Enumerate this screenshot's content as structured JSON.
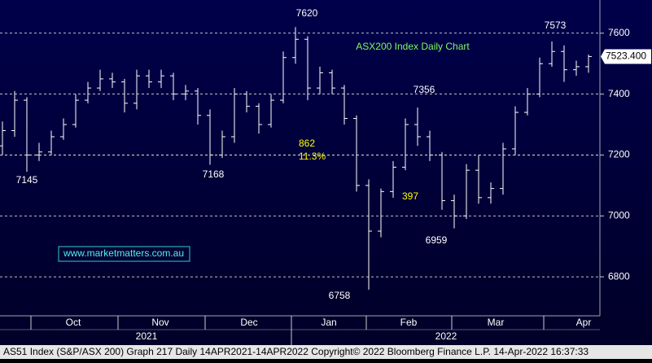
{
  "chart_data": {
    "type": "ohlc",
    "title": "ASX200 Index Daily Chart",
    "color": "#ffffff",
    "open": [
      7230,
      7280,
      7380,
      7200,
      7210,
      7260,
      7300,
      7380,
      7420,
      7450,
      7440,
      7370,
      7460,
      7440,
      7460,
      7400,
      7410,
      7330,
      7200,
      7260,
      7400,
      7360,
      7300,
      7380,
      7520,
      7580,
      7420,
      7470,
      7420,
      7320,
      7100,
      6950,
      7080,
      7160,
      7300,
      7260,
      7200,
      7050,
      7000,
      7150,
      7060,
      7090,
      7220,
      7340,
      7400,
      7500,
      7540,
      7480,
      7490
    ],
    "high": [
      7310,
      7410,
      7390,
      7240,
      7280,
      7320,
      7400,
      7440,
      7480,
      7470,
      7450,
      7480,
      7480,
      7480,
      7470,
      7430,
      7420,
      7350,
      7280,
      7420,
      7410,
      7370,
      7400,
      7540,
      7620,
      7590,
      7490,
      7480,
      7430,
      7330,
      7120,
      7090,
      7180,
      7320,
      7356,
      7280,
      7210,
      7070,
      7170,
      7200,
      7110,
      7240,
      7360,
      7420,
      7520,
      7573,
      7560,
      7510,
      7530
    ],
    "low": [
      7200,
      7260,
      7145,
      7180,
      7200,
      7250,
      7290,
      7370,
      7410,
      7420,
      7340,
      7350,
      7420,
      7420,
      7380,
      7380,
      7300,
      7168,
      7190,
      7240,
      7340,
      7270,
      7290,
      7370,
      7500,
      7380,
      7400,
      7400,
      7300,
      7080,
      6758,
      6930,
      7060,
      7150,
      7230,
      7180,
      7020,
      6959,
      6990,
      7040,
      7040,
      7070,
      7200,
      7330,
      7390,
      7490,
      7440,
      7460,
      7470
    ],
    "close": [
      7280,
      7380,
      7200,
      7210,
      7260,
      7300,
      7380,
      7420,
      7450,
      7440,
      7370,
      7460,
      7440,
      7460,
      7400,
      7410,
      7330,
      7200,
      7260,
      7400,
      7360,
      7300,
      7380,
      7520,
      7580,
      7420,
      7470,
      7420,
      7320,
      7100,
      6950,
      7080,
      7160,
      7300,
      7260,
      7200,
      7050,
      7000,
      7150,
      7060,
      7090,
      7220,
      7340,
      7400,
      7500,
      7540,
      7480,
      7490,
      7523.4
    ],
    "last_price": {
      "value": 7523.4,
      "label": "7523.400"
    },
    "ylim": [
      6672,
      7709
    ],
    "yticks": [
      6800,
      7000,
      7200,
      7400,
      7600
    ],
    "grid": true,
    "months": [
      "Oct",
      "Nov",
      "Dec",
      "Jan",
      "Feb",
      "Mar",
      "Apr"
    ],
    "years": [
      "2021",
      "2022"
    ],
    "annotations": [
      "862",
      "11.3%",
      "397"
    ],
    "website": "www.marketmatters.com.au",
    "footer": "AS51 Index (S&P/ASX 200) Graph 217  Daily 14APR2021-14APR2022  Copyright© 2022 Bloomberg Finance L.P.  14-Apr-2022 16:37:33"
  }
}
